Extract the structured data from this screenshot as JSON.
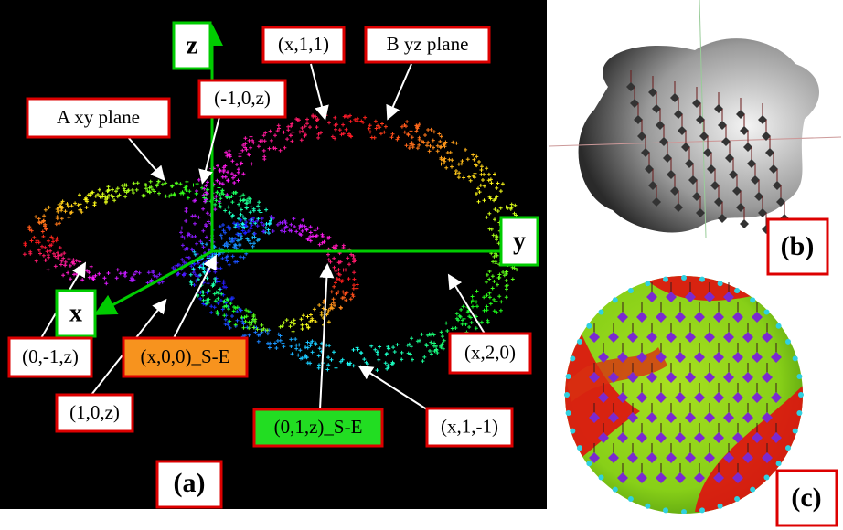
{
  "panels": {
    "a": {
      "label": "(a)",
      "axes": {
        "z": "z",
        "y": "y",
        "x": "x"
      },
      "annotations": [
        "(x,1,1)",
        "B yz plane",
        "(-1,0,z)",
        "A xy plane",
        "(0,-1,z)",
        "(x,0,0)_S-E",
        "(x,2,0)",
        "(1,0,z)",
        "(0,1,z)_S-E",
        "(x,1,-1)"
      ]
    },
    "b": {
      "label": "(b)"
    },
    "c": {
      "label": "(c)"
    }
  }
}
